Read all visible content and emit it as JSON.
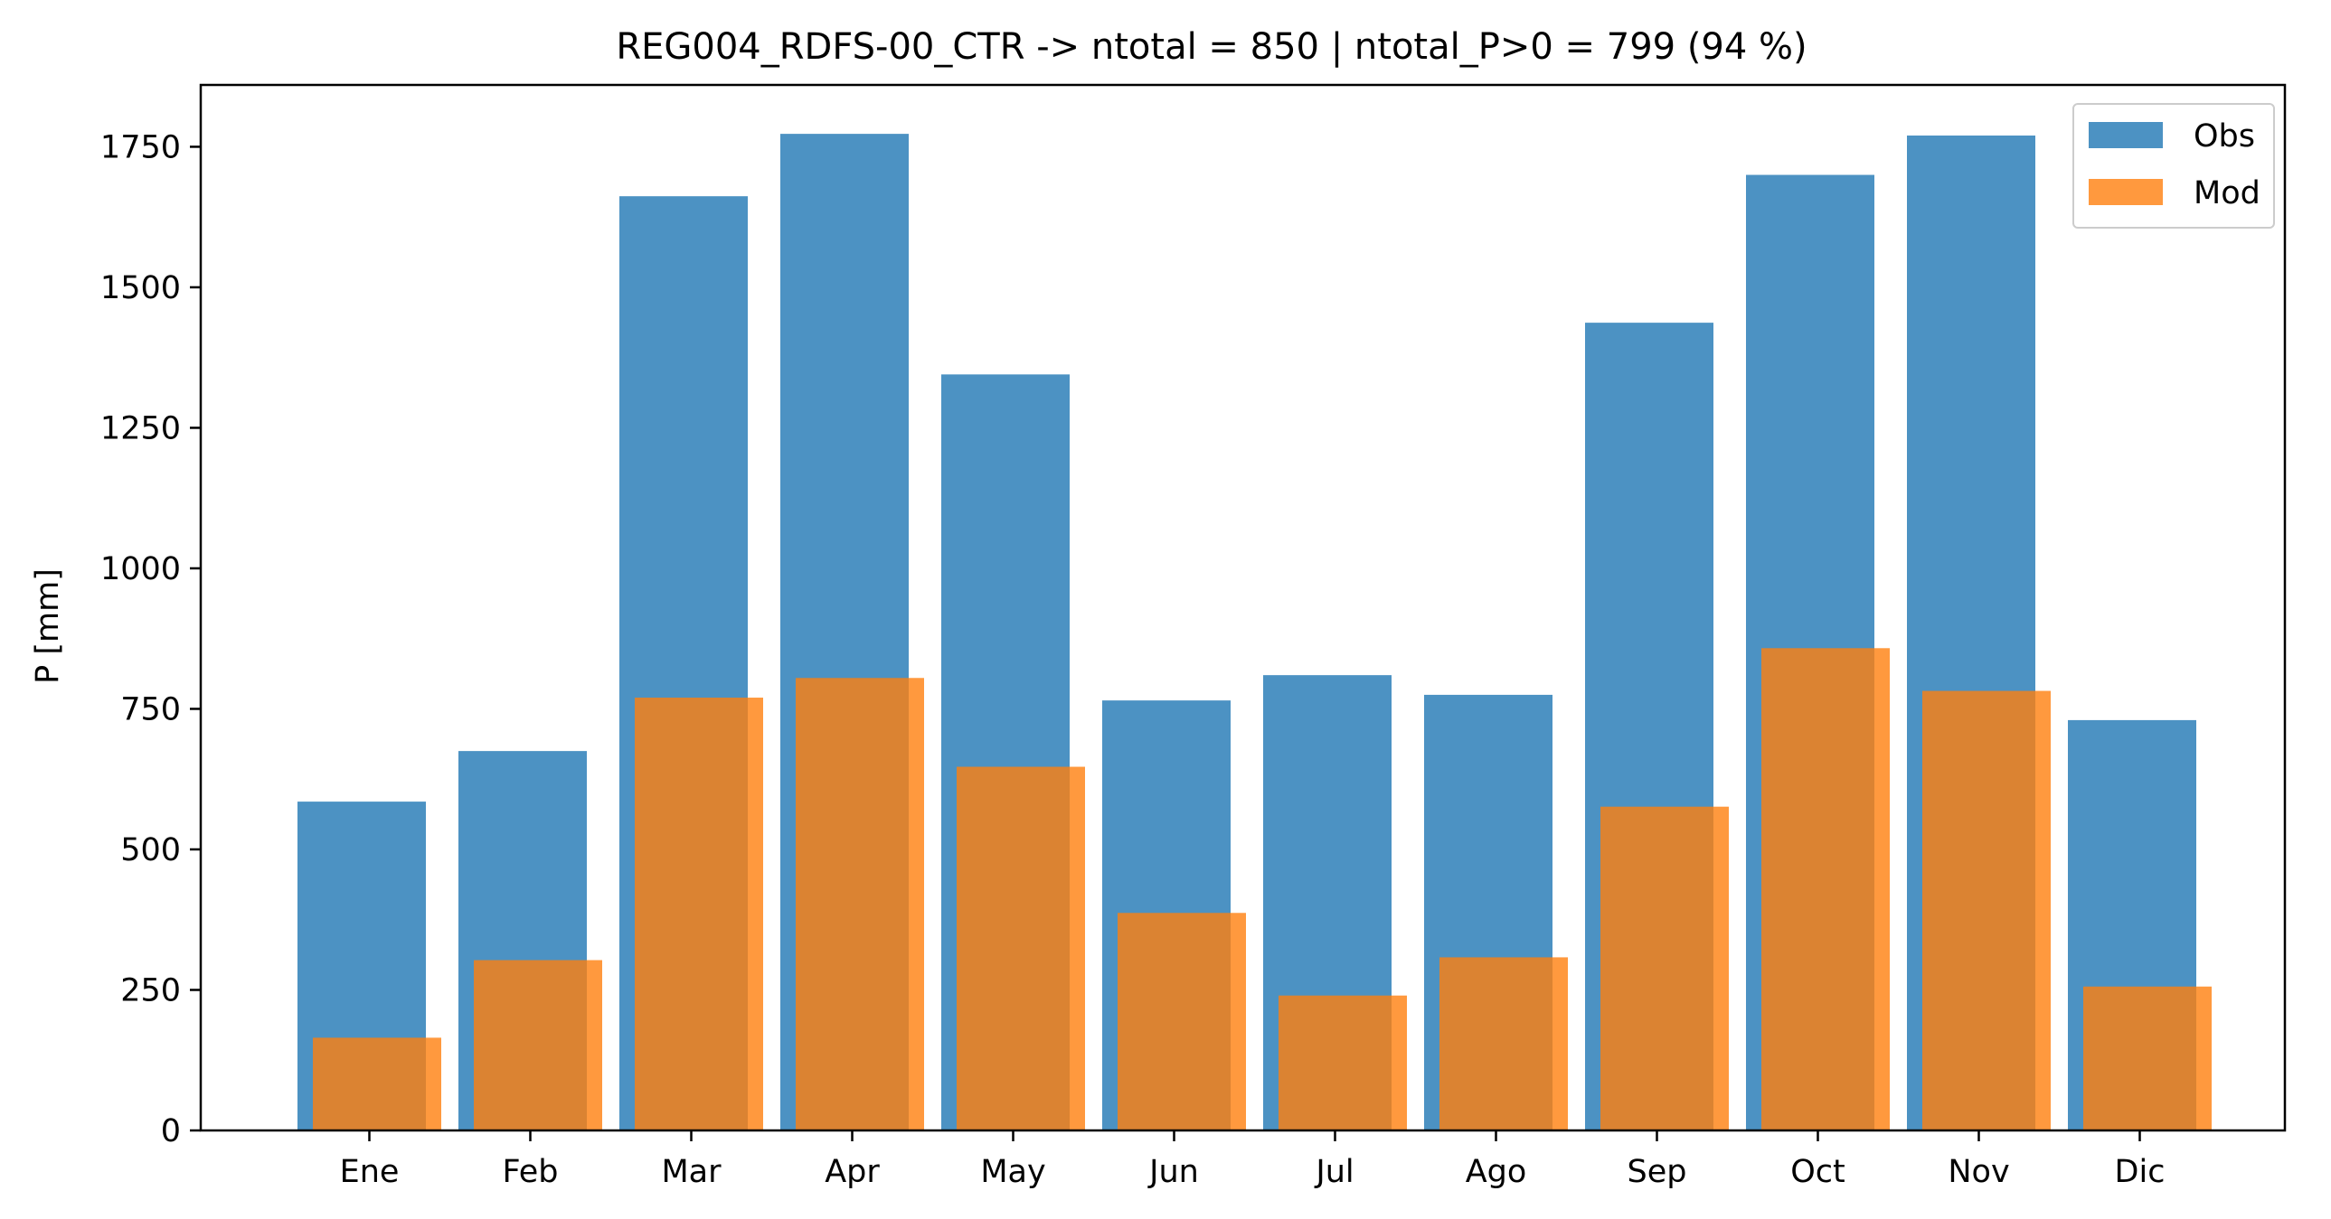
{
  "chart_data": {
    "type": "bar",
    "title": "REG004_RDFS-00_CTR -> ntotal = 850 | ntotal_P>0 = 799 (94 %)",
    "xlabel": "",
    "ylabel": "P [mm]",
    "categories": [
      "Ene",
      "Feb",
      "Mar",
      "Apr",
      "May",
      "Jun",
      "Jul",
      "Ago",
      "Sep",
      "Oct",
      "Nov",
      "Dic"
    ],
    "series": [
      {
        "name": "Obs",
        "color": "#1f77b4",
        "values": [
          585,
          675,
          1662,
          1773,
          1345,
          765,
          810,
          775,
          1437,
          1700,
          1770,
          730
        ]
      },
      {
        "name": "Mod",
        "color": "#ff7f0e",
        "values": [
          165,
          303,
          770,
          805,
          647,
          387,
          240,
          308,
          576,
          858,
          782,
          256
        ]
      }
    ],
    "yticks": [
      0,
      250,
      500,
      750,
      1000,
      1250,
      1500,
      1750
    ],
    "ylim": [
      0,
      1860
    ],
    "grid": false,
    "legend_position": "top-right"
  }
}
